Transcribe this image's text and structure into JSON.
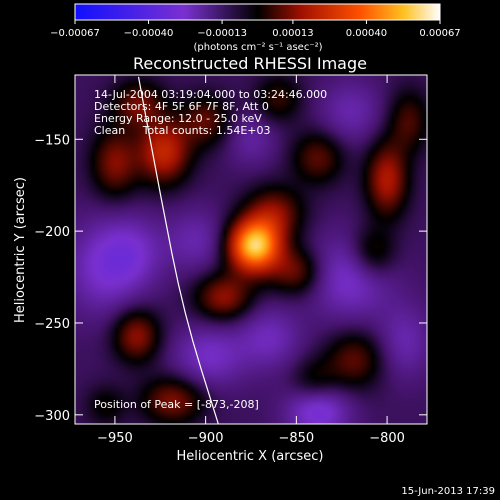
{
  "chart_data": {
    "type": "heatmap",
    "title": "Reconstructed RHESSI Image",
    "xlabel": "Heliocentric X (arcsec)",
    "ylabel": "Heliocentric Y (arcsec)",
    "xlim": [
      -972,
      -778
    ],
    "ylim": [
      -305,
      -115
    ],
    "x_ticks": [
      -950,
      -900,
      -850,
      -800
    ],
    "y_ticks": [
      -150,
      -200,
      -250,
      -300
    ],
    "x_tick_labels": [
      "−950",
      "−900",
      "−850",
      "−800"
    ],
    "y_tick_labels": [
      "−150",
      "−200",
      "−250",
      "−300"
    ],
    "colorbar": {
      "range": [
        -0.00067,
        0.00067
      ],
      "tick_values": [
        -0.00067,
        -0.0004,
        -0.00013,
        0.00013,
        0.0004,
        0.00067
      ],
      "tick_labels": [
        "−0.00067",
        "−0.00040",
        "−0.00013",
        "0.00013",
        "0.00040",
        "0.00067"
      ],
      "units": "(photons cm⁻² s⁻¹ asec⁻²)"
    },
    "annotations": [
      "14-Jul-2004 03:19:04.000 to 03:24:46.000",
      "Detectors: 4F 5F 6F 7F 8F, Att 0",
      "Energy Range: 12.0 - 25.0 keV",
      "Clean     Total counts: 1.54E+03"
    ],
    "peak_label": "Position of Peak = [-873,-208]",
    "peak": [
      -873,
      -208
    ],
    "timestamp": "15-Jun-2013 17:39",
    "sources": [
      {
        "x": -873,
        "y": -208,
        "amp": 0.00066,
        "sx": 10,
        "sy": 10
      },
      {
        "x": -862,
        "y": -190,
        "amp": 0.00022,
        "sx": 11,
        "sy": 10
      },
      {
        "x": -890,
        "y": -236,
        "amp": 0.00024,
        "sx": 11,
        "sy": 9
      },
      {
        "x": -923,
        "y": -157,
        "amp": 0.00032,
        "sx": 10,
        "sy": 12
      },
      {
        "x": -950,
        "y": -163,
        "amp": 0.00022,
        "sx": 9,
        "sy": 13
      },
      {
        "x": -937,
        "y": -131,
        "amp": 0.0002,
        "sx": 10,
        "sy": 9
      },
      {
        "x": -900,
        "y": -140,
        "amp": 0.00018,
        "sx": 10,
        "sy": 10
      },
      {
        "x": -850,
        "y": -222,
        "amp": 0.0002,
        "sx": 10,
        "sy": 9
      },
      {
        "x": -838,
        "y": -160,
        "amp": 0.00018,
        "sx": 10,
        "sy": 10
      },
      {
        "x": -860,
        "y": -128,
        "amp": 0.00014,
        "sx": 9,
        "sy": 9
      },
      {
        "x": -800,
        "y": -172,
        "amp": 0.00028,
        "sx": 8,
        "sy": 14
      },
      {
        "x": -808,
        "y": -212,
        "amp": 0.00018,
        "sx": 9,
        "sy": 10
      },
      {
        "x": -788,
        "y": -140,
        "amp": 0.00016,
        "sx": 8,
        "sy": 12
      },
      {
        "x": -818,
        "y": -270,
        "amp": 0.00018,
        "sx": 11,
        "sy": 11
      },
      {
        "x": -840,
        "y": -282,
        "amp": 0.00012,
        "sx": 9,
        "sy": 9
      },
      {
        "x": -938,
        "y": -257,
        "amp": 0.00024,
        "sx": 9,
        "sy": 10
      },
      {
        "x": -918,
        "y": -292,
        "amp": 0.00022,
        "sx": 12,
        "sy": 9
      },
      {
        "x": -955,
        "y": -295,
        "amp": 0.0001,
        "sx": 8,
        "sy": 8
      },
      {
        "x": -957,
        "y": -220,
        "amp": -0.00016,
        "sx": 14,
        "sy": 18
      },
      {
        "x": -940,
        "y": -212,
        "amp": -0.00014,
        "sx": 12,
        "sy": 14
      },
      {
        "x": -905,
        "y": -205,
        "amp": -0.00012,
        "sx": 12,
        "sy": 12
      },
      {
        "x": -898,
        "y": -268,
        "amp": -0.00016,
        "sx": 14,
        "sy": 12
      },
      {
        "x": -865,
        "y": -258,
        "amp": -0.00014,
        "sx": 12,
        "sy": 12
      },
      {
        "x": -820,
        "y": -225,
        "amp": -0.00018,
        "sx": 16,
        "sy": 16
      },
      {
        "x": -838,
        "y": -298,
        "amp": -0.00022,
        "sx": 12,
        "sy": 10
      },
      {
        "x": -820,
        "y": -135,
        "amp": -0.00012,
        "sx": 12,
        "sy": 12
      },
      {
        "x": -875,
        "y": -150,
        "amp": -0.0001,
        "sx": 10,
        "sy": 10
      },
      {
        "x": -790,
        "y": -260,
        "amp": -0.00012,
        "sx": 10,
        "sy": 14
      }
    ],
    "limb_arc": [
      {
        "x": -937,
        "y": -116
      },
      {
        "x": -925,
        "y": -180
      },
      {
        "x": -912,
        "y": -245
      },
      {
        "x": -893,
        "y": -305
      }
    ]
  }
}
